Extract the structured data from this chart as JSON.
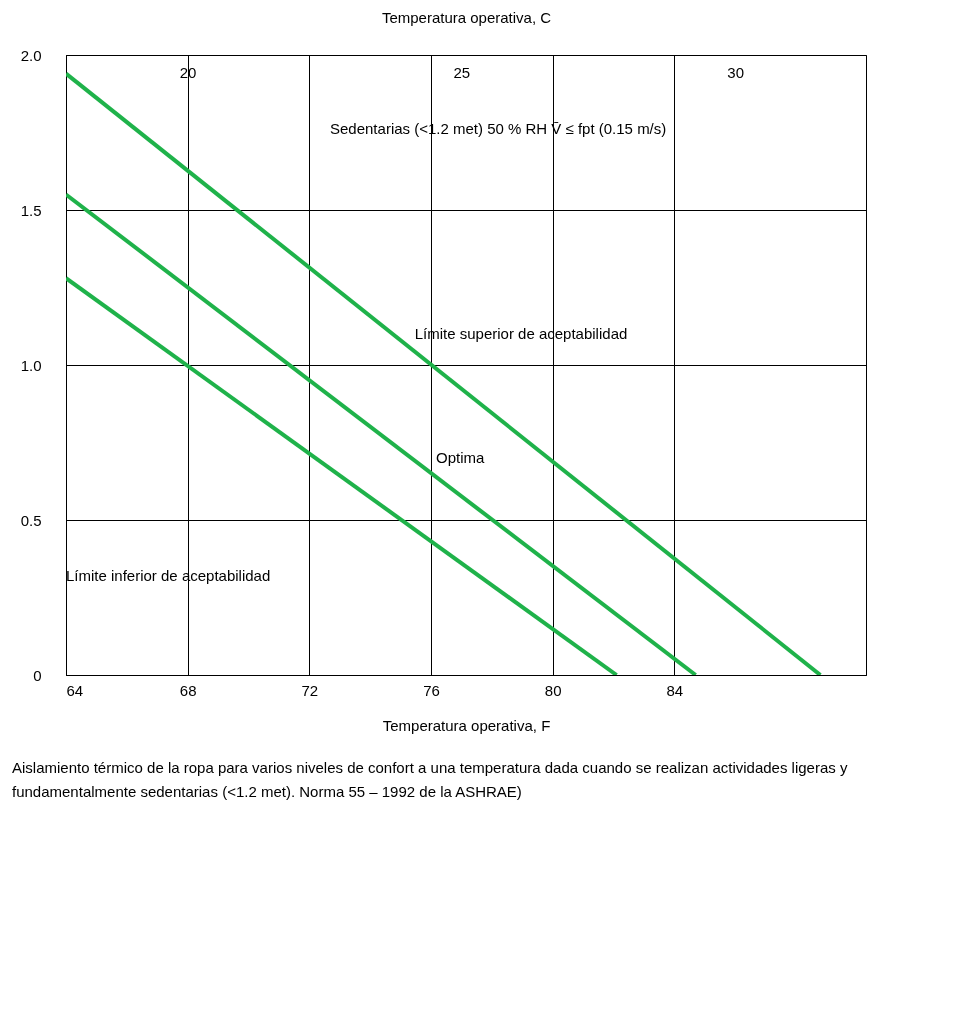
{
  "chart_data": {
    "type": "line",
    "xlabel": "Temperatura operativa, F",
    "x2label": "Temperatura operativa, C",
    "xlim": [
      64,
      90.3
    ],
    "xticks": [
      64,
      68,
      72,
      76,
      80,
      84
    ],
    "x2lim": [
      17.78,
      32.39
    ],
    "x2ticks": [
      20,
      25,
      30
    ],
    "ylim": [
      0,
      2.0
    ],
    "yticks": [
      0,
      0.5,
      {
        "value": 1,
        "label": "1.0"
      },
      {
        "value": 1.5,
        "label": "1.5"
      },
      {
        "value": 2,
        "label": "2.0"
      }
    ],
    "grid": true,
    "line_style": "solid",
    "series": [
      {
        "color": "#1fb24a",
        "x": [
          64,
          88.8
        ],
        "values": [
          1.94,
          0
        ]
      },
      {
        "color": "#1fb24a",
        "x": [
          64,
          84.7
        ],
        "values": [
          1.55,
          0
        ]
      },
      {
        "color": "#1fb24a",
        "x": [
          64,
          82.1
        ],
        "values": [
          1.28,
          0
        ]
      }
    ],
    "annotations": [
      "Sedentarias (<1.2 met) 50 % RH V̄ ≤ fpt (0.15 m/s)",
      {
        "text": "Límite superior de aceptabilidad",
        "x": 75.2,
        "y": 1.06
      },
      {
        "text": "Optima",
        "x": 75.9,
        "y": 0.66
      },
      "Límite inferior de aceptabilidad",
      "Aislamiento térmico de la ropa para varios niveles de confort a una temperatura dada cuando se realizan actividades ligeras y fundamentalmente sedentarias (<1.2 met). Norma 55 – 1992 de la ASHRAE)"
    ]
  }
}
